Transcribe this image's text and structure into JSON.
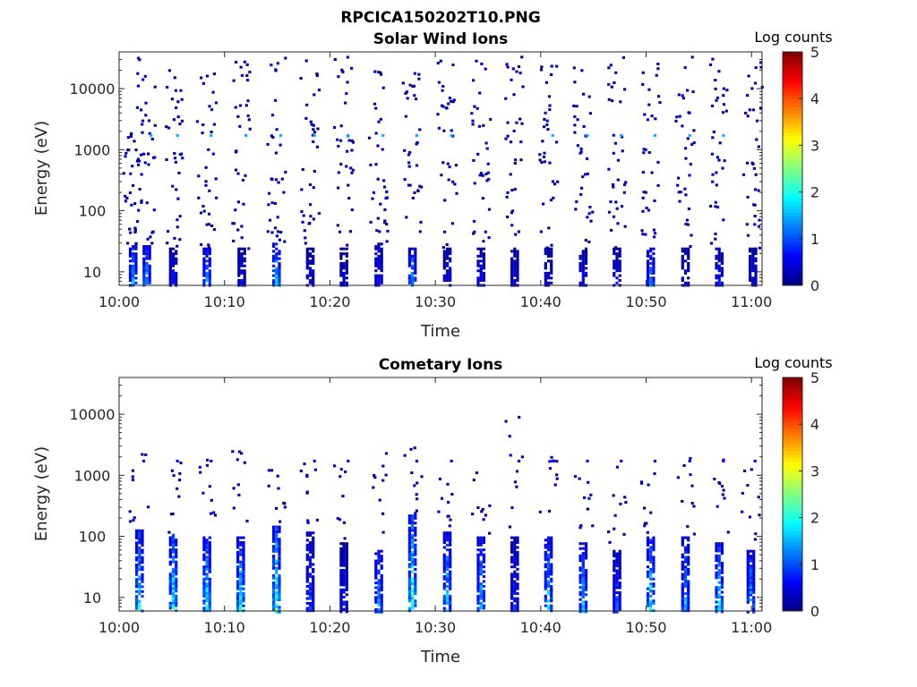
{
  "figure": {
    "title": "RPCICA150202T10.PNG"
  },
  "chart_data": [
    {
      "type": "heatmap",
      "title": "Solar Wind Ions",
      "xlabel": "Time",
      "ylabel": "Energy (eV)",
      "x_ticks": [
        "10:00",
        "10:10",
        "10:20",
        "10:30",
        "10:40",
        "10:50",
        "11:00"
      ],
      "x_range_minutes": [
        0,
        61
      ],
      "y_scale": "log",
      "y_ticks": [
        "10",
        "100",
        "1000",
        "10000"
      ],
      "y_range": [
        6,
        40000
      ],
      "colorbar": {
        "label": "Log counts",
        "ticks": [
          "0",
          "1",
          "2",
          "3",
          "4",
          "5"
        ],
        "range": [
          0,
          5
        ],
        "colormap": "jet"
      },
      "sweep_period_minutes": 3.2,
      "sweeps": [
        {
          "t": 1.2,
          "e_low": 6,
          "e_high": 30,
          "peak": 1.8,
          "sparse_high": 3000
        },
        {
          "t": 2.5,
          "e_low": 6,
          "e_high": 30,
          "peak": 2.0,
          "sparse_high": 40000
        },
        {
          "t": 5.0,
          "e_low": 6,
          "e_high": 25,
          "peak": 0.9,
          "sparse_high": 30000
        },
        {
          "t": 8.2,
          "e_low": 6,
          "e_high": 25,
          "peak": 1.9,
          "sparse_high": 35000
        },
        {
          "t": 11.5,
          "e_low": 6,
          "e_high": 25,
          "peak": 0.8,
          "sparse_high": 35000
        },
        {
          "t": 14.8,
          "e_low": 6,
          "e_high": 30,
          "peak": 2.2,
          "sparse_high": 35000
        },
        {
          "t": 18.0,
          "e_low": 6,
          "e_high": 25,
          "peak": 0.7,
          "sparse_high": 35000
        },
        {
          "t": 21.2,
          "e_low": 6,
          "e_high": 25,
          "peak": 0.6,
          "sparse_high": 35000
        },
        {
          "t": 24.5,
          "e_low": 6,
          "e_high": 30,
          "peak": 0.9,
          "sparse_high": 35000
        },
        {
          "t": 27.7,
          "e_low": 6,
          "e_high": 25,
          "peak": 2.0,
          "sparse_high": 35000
        },
        {
          "t": 31.0,
          "e_low": 6,
          "e_high": 25,
          "peak": 0.7,
          "sparse_high": 35000
        },
        {
          "t": 34.2,
          "e_low": 6,
          "e_high": 25,
          "peak": 0.8,
          "sparse_high": 35000
        },
        {
          "t": 37.4,
          "e_low": 6,
          "e_high": 25,
          "peak": 0.7,
          "sparse_high": 35000
        },
        {
          "t": 40.6,
          "e_low": 6,
          "e_high": 25,
          "peak": 0.7,
          "sparse_high": 35000
        },
        {
          "t": 43.9,
          "e_low": 6,
          "e_high": 25,
          "peak": 0.9,
          "sparse_high": 35000
        },
        {
          "t": 47.1,
          "e_low": 6,
          "e_high": 25,
          "peak": 0.8,
          "sparse_high": 35000
        },
        {
          "t": 50.3,
          "e_low": 6,
          "e_high": 25,
          "peak": 1.9,
          "sparse_high": 35000
        },
        {
          "t": 53.6,
          "e_low": 6,
          "e_high": 25,
          "peak": 0.7,
          "sparse_high": 35000
        },
        {
          "t": 56.8,
          "e_low": 6,
          "e_high": 25,
          "peak": 0.9,
          "sparse_high": 35000
        },
        {
          "t": 60.0,
          "e_low": 6,
          "e_high": 25,
          "peak": 0.7,
          "sparse_high": 35000
        }
      ]
    },
    {
      "type": "heatmap",
      "title": "Cometary Ions",
      "xlabel": "Time",
      "ylabel": "Energy (eV)",
      "x_ticks": [
        "10:00",
        "10:10",
        "10:20",
        "10:30",
        "10:40",
        "10:50",
        "11:00"
      ],
      "x_range_minutes": [
        0,
        61
      ],
      "y_scale": "log",
      "y_ticks": [
        "10",
        "100",
        "1000",
        "10000"
      ],
      "y_range": [
        6,
        40000
      ],
      "colorbar": {
        "label": "Log counts",
        "ticks": [
          "0",
          "1",
          "2",
          "3",
          "4",
          "5"
        ],
        "range": [
          0,
          5
        ],
        "colormap": "jet"
      },
      "sweep_period_minutes": 3.2,
      "sweeps": [
        {
          "t": 1.8,
          "e_low": 6,
          "e_high": 130,
          "peak": 2.4,
          "sparse_high": 2500
        },
        {
          "t": 5.0,
          "e_low": 6,
          "e_high": 110,
          "peak": 2.6,
          "sparse_high": 2000
        },
        {
          "t": 8.2,
          "e_low": 6,
          "e_high": 100,
          "peak": 2.5,
          "sparse_high": 2000
        },
        {
          "t": 11.4,
          "e_low": 6,
          "e_high": 100,
          "peak": 2.5,
          "sparse_high": 3000
        },
        {
          "t": 14.8,
          "e_low": 6,
          "e_high": 150,
          "peak": 2.9,
          "sparse_high": 2000
        },
        {
          "t": 18.0,
          "e_low": 6,
          "e_high": 120,
          "peak": 1.3,
          "sparse_high": 2000
        },
        {
          "t": 21.2,
          "e_low": 6,
          "e_high": 80,
          "peak": 0.9,
          "sparse_high": 2000
        },
        {
          "t": 24.5,
          "e_low": 6,
          "e_high": 60,
          "peak": 1.9,
          "sparse_high": 3000
        },
        {
          "t": 27.7,
          "e_low": 6,
          "e_high": 250,
          "peak": 2.8,
          "sparse_high": 3000
        },
        {
          "t": 31.0,
          "e_low": 6,
          "e_high": 120,
          "peak": 2.2,
          "sparse_high": 2000
        },
        {
          "t": 34.2,
          "e_low": 6,
          "e_high": 100,
          "peak": 2.0,
          "sparse_high": 2000
        },
        {
          "t": 37.4,
          "e_low": 6,
          "e_high": 100,
          "peak": 1.0,
          "sparse_high": 10000
        },
        {
          "t": 40.6,
          "e_low": 6,
          "e_high": 100,
          "peak": 2.2,
          "sparse_high": 3000
        },
        {
          "t": 43.9,
          "e_low": 6,
          "e_high": 80,
          "peak": 2.0,
          "sparse_high": 3000
        },
        {
          "t": 47.1,
          "e_low": 6,
          "e_high": 60,
          "peak": 1.3,
          "sparse_high": 2000
        },
        {
          "t": 50.3,
          "e_low": 6,
          "e_high": 100,
          "peak": 2.5,
          "sparse_high": 2000
        },
        {
          "t": 53.6,
          "e_low": 6,
          "e_high": 100,
          "peak": 1.9,
          "sparse_high": 2000
        },
        {
          "t": 56.8,
          "e_low": 6,
          "e_high": 80,
          "peak": 2.3,
          "sparse_high": 2000
        },
        {
          "t": 59.8,
          "e_low": 6,
          "e_high": 60,
          "peak": 2.0,
          "sparse_high": 2000
        }
      ]
    }
  ]
}
